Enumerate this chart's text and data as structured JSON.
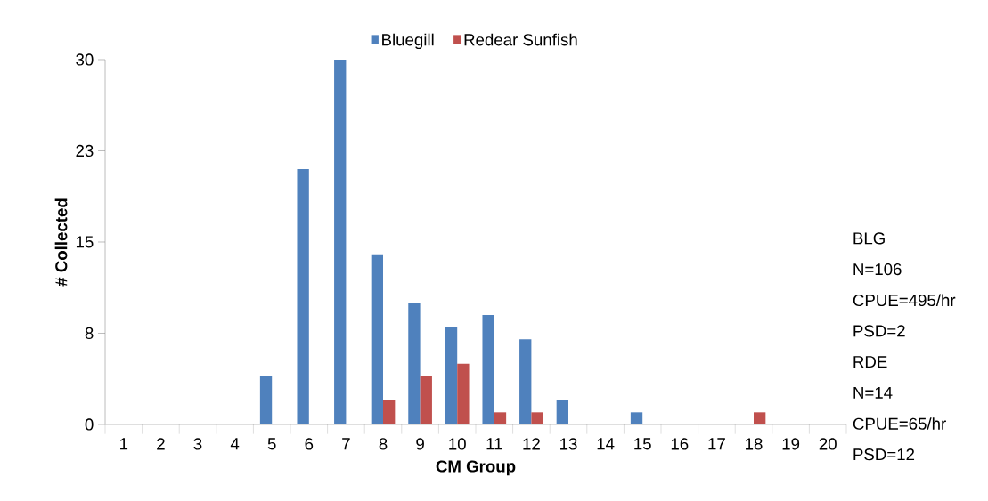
{
  "chart_data": {
    "type": "bar",
    "xlabel": "CM Group",
    "ylabel": "# Collected",
    "categories": [
      "1",
      "2",
      "3",
      "4",
      "5",
      "6",
      "7",
      "8",
      "9",
      "10",
      "11",
      "12",
      "13",
      "14",
      "15",
      "16",
      "17",
      "18",
      "19",
      "20"
    ],
    "series": [
      {
        "name": "Bluegill",
        "color": "#4f81bd",
        "values": [
          0,
          0,
          0,
          0,
          4,
          21,
          30,
          14,
          10,
          8,
          9,
          7,
          2,
          0,
          1,
          0,
          0,
          0,
          0,
          0
        ]
      },
      {
        "name": "Redear Sunfish",
        "color": "#c0504d",
        "values": [
          0,
          0,
          0,
          0,
          0,
          0,
          0,
          2,
          4,
          5,
          1,
          1,
          0,
          0,
          0,
          0,
          0,
          1,
          0,
          0
        ]
      }
    ],
    "ylim": [
      0,
      30
    ],
    "yticks": [
      0,
      {
        "value": 7.5,
        "label": "8"
      },
      15,
      {
        "value": 22.5,
        "label": "23"
      },
      30
    ],
    "legend": "top",
    "annotations": [
      "BLG",
      "N=106",
      "CPUE=495/hr",
      "PSD=2",
      "RDE",
      "N=14",
      "CPUE=65/hr",
      "PSD=12"
    ]
  }
}
